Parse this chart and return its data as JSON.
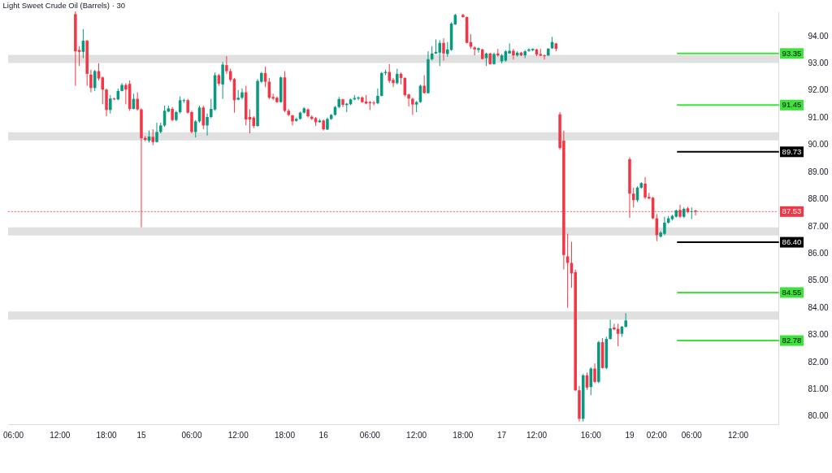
{
  "chart_data": {
    "type": "candlestick",
    "title": "Light Sweet Crude Oil (Barrels) · 30",
    "categories": [
      null,
      "06:00",
      null,
      null,
      null,
      null,
      null,
      null,
      null,
      null,
      null,
      null,
      null,
      "12:00",
      null,
      null,
      null,
      null,
      null,
      null,
      null,
      null,
      null,
      null,
      null,
      "18:00",
      null,
      null,
      null,
      null,
      null,
      null,
      null,
      null,
      "15",
      null,
      null,
      null,
      null,
      null,
      null,
      null,
      null,
      null,
      null,
      null,
      null,
      "06:00",
      null,
      null,
      null,
      null,
      null,
      null,
      null,
      null,
      null,
      null,
      null,
      "12:00",
      null,
      null,
      null,
      null,
      null,
      null,
      null,
      null,
      null,
      null,
      null,
      "18:00",
      null,
      null,
      null,
      null,
      null,
      null,
      null,
      null,
      null,
      "16",
      null,
      null,
      null,
      null,
      null,
      null,
      null,
      null,
      null,
      null,
      null,
      "06:00",
      null,
      null,
      null,
      null,
      null,
      null,
      null,
      null,
      null,
      null,
      null,
      "12:00",
      null,
      null,
      null,
      null,
      null,
      null,
      null,
      null,
      null,
      null,
      null,
      "18:00",
      null,
      null,
      null,
      null,
      null,
      null,
      null,
      null,
      null,
      "17",
      null,
      null,
      null,
      null,
      null,
      null,
      null,
      null,
      "12:00",
      null,
      null,
      null,
      null,
      null,
      null,
      null,
      null,
      null,
      null,
      null,
      null,
      null,
      "16:00",
      null,
      null,
      null,
      null,
      null,
      null,
      null,
      null,
      null,
      "19",
      null,
      null,
      null,
      null,
      null,
      null,
      "02:00",
      null,
      null,
      null,
      null,
      null,
      null,
      null,
      null,
      "06:00",
      null,
      null,
      null,
      null,
      null,
      null,
      null,
      null,
      null,
      null,
      null,
      "12:00",
      null,
      null,
      null,
      null,
      null,
      null,
      null,
      null,
      null,
      null
    ],
    "ohlc": [
      null,
      null,
      null,
      null,
      null,
      null,
      null,
      null,
      null,
      null,
      null,
      null,
      null,
      null,
      null,
      null,
      null,
      [
        94.8,
        94.9,
        92.16,
        93.43
      ],
      [
        93.48,
        93.62,
        92.89,
        93.41
      ],
      [
        93.41,
        94.25,
        93.18,
        93.82
      ],
      [
        93.82,
        93.85,
        92.16,
        92.6
      ],
      [
        92.57,
        92.75,
        91.92,
        92.08
      ],
      [
        92.08,
        92.75,
        91.97,
        92.7
      ],
      [
        92.7,
        92.99,
        92.36,
        92.43
      ],
      [
        92.47,
        92.5,
        91.48,
        92.02
      ],
      [
        92.02,
        92.06,
        91.04,
        91.27
      ],
      [
        91.27,
        91.82,
        91.14,
        91.69
      ],
      [
        91.69,
        91.72,
        91.63,
        91.66
      ],
      [
        91.66,
        92.06,
        91.63,
        91.97
      ],
      [
        91.97,
        92.26,
        91.95,
        92.19
      ],
      [
        92.19,
        92.26,
        91.48,
        92.02
      ],
      [
        92.23,
        92.36,
        91.24,
        91.31
      ],
      [
        91.31,
        91.87,
        91.29,
        91.68
      ],
      [
        91.68,
        91.92,
        91.24,
        91.29
      ],
      [
        91.29,
        91.33,
        86.95,
        90.23
      ],
      [
        90.24,
        90.31,
        90.12,
        90.17
      ],
      [
        90.14,
        90.51,
        90.07,
        90.29
      ],
      [
        90.28,
        90.56,
        89.97,
        90.09
      ],
      [
        90.09,
        90.8,
        90.07,
        90.46
      ],
      [
        90.46,
        90.8,
        90.41,
        90.7
      ],
      [
        90.7,
        91.43,
        90.65,
        91.24
      ],
      [
        91.21,
        91.43,
        91.19,
        91.33
      ],
      [
        91.31,
        91.38,
        90.85,
        90.9
      ],
      [
        90.9,
        91.24,
        90.85,
        91.19
      ],
      [
        91.19,
        91.77,
        91.14,
        91.63
      ],
      [
        91.6,
        91.68,
        91.53,
        91.63
      ],
      [
        91.63,
        91.68,
        91.14,
        91.17
      ],
      [
        91.19,
        91.24,
        90.41,
        90.46
      ],
      [
        90.46,
        90.9,
        90.26,
        90.85
      ],
      [
        90.85,
        91.43,
        90.8,
        91.36
      ],
      [
        91.36,
        91.43,
        90.56,
        90.7
      ],
      [
        90.7,
        91.14,
        90.33,
        91.01
      ],
      [
        91.01,
        91.68,
        90.97,
        91.31
      ],
      [
        91.29,
        92.65,
        91.24,
        92.55
      ],
      [
        92.55,
        92.6,
        92.16,
        92.24
      ],
      [
        92.21,
        93.04,
        91.68,
        92.94
      ],
      [
        92.92,
        93.25,
        92.6,
        92.7
      ],
      [
        92.7,
        92.79,
        92.31,
        92.38
      ],
      [
        92.41,
        92.45,
        91.17,
        91.63
      ],
      [
        91.65,
        92.0,
        91.63,
        91.72
      ],
      [
        91.72,
        92.06,
        91.66,
        91.92
      ],
      [
        91.92,
        92.16,
        90.7,
        90.92
      ],
      [
        91.01,
        91.29,
        90.41,
        90.92
      ],
      [
        90.99,
        91.04,
        90.6,
        90.68
      ],
      [
        90.68,
        92.41,
        90.65,
        92.34
      ],
      [
        92.31,
        92.67,
        92.26,
        92.63
      ],
      [
        92.63,
        92.87,
        92.11,
        92.31
      ],
      [
        92.31,
        92.45,
        91.67,
        91.72
      ],
      [
        91.75,
        91.87,
        91.63,
        91.69
      ],
      [
        91.72,
        91.77,
        91.53,
        91.56
      ],
      [
        91.56,
        92.5,
        91.53,
        92.47
      ],
      [
        92.47,
        92.7,
        91.19,
        91.24
      ],
      [
        91.24,
        91.31,
        91.04,
        91.09
      ],
      [
        91.07,
        91.09,
        90.7,
        90.85
      ],
      [
        90.87,
        90.99,
        90.84,
        90.94
      ],
      [
        90.94,
        91.21,
        90.92,
        91.17
      ],
      [
        91.17,
        91.38,
        91.14,
        91.33
      ],
      [
        91.29,
        91.33,
        90.99,
        91.04
      ],
      [
        91.02,
        91.07,
        90.9,
        90.94
      ],
      [
        90.97,
        91.01,
        90.68,
        90.82
      ],
      [
        90.82,
        90.94,
        90.8,
        90.88
      ],
      [
        90.88,
        90.92,
        90.51,
        90.56
      ],
      [
        90.55,
        90.99,
        90.53,
        90.94
      ],
      [
        90.94,
        91.12,
        90.9,
        91.09
      ],
      [
        91.09,
        91.42,
        91.06,
        91.38
      ],
      [
        91.38,
        91.75,
        91.33,
        91.67
      ],
      [
        91.66,
        91.69,
        91.38,
        91.46
      ],
      [
        91.45,
        91.53,
        91.19,
        91.5
      ],
      [
        91.48,
        91.69,
        91.45,
        91.66
      ],
      [
        91.66,
        91.82,
        91.63,
        91.71
      ],
      [
        91.69,
        91.77,
        91.63,
        91.73
      ],
      [
        91.73,
        91.77,
        91.53,
        91.56
      ],
      [
        91.58,
        91.82,
        91.48,
        91.51
      ],
      [
        91.56,
        91.6,
        91.27,
        91.52
      ],
      [
        91.54,
        91.6,
        91.44,
        91.51
      ],
      [
        91.52,
        92.06,
        91.48,
        91.79
      ],
      [
        91.79,
        92.67,
        91.77,
        92.63
      ],
      [
        92.63,
        92.75,
        92.55,
        92.67
      ],
      [
        92.67,
        92.96,
        92.26,
        92.34
      ],
      [
        92.38,
        92.45,
        92.11,
        92.26
      ],
      [
        92.26,
        92.79,
        92.21,
        92.6
      ],
      [
        92.6,
        92.65,
        92.21,
        92.45
      ],
      [
        92.45,
        92.47,
        91.77,
        91.82
      ],
      [
        91.84,
        91.87,
        91.4,
        91.69
      ],
      [
        91.68,
        91.72,
        91.09,
        91.47
      ],
      [
        91.47,
        91.6,
        91.19,
        91.56
      ],
      [
        91.56,
        92.21,
        91.53,
        92.16
      ],
      [
        92.16,
        92.55,
        91.87,
        91.89
      ],
      [
        91.89,
        93.43,
        91.87,
        93.14
      ],
      [
        93.14,
        93.62,
        93.09,
        93.35
      ],
      [
        93.35,
        93.87,
        93.33,
        93.41
      ],
      [
        93.38,
        93.84,
        92.89,
        93.74
      ],
      [
        93.74,
        93.91,
        93.09,
        93.35
      ],
      [
        93.33,
        93.77,
        93.23,
        93.5
      ],
      [
        93.48,
        94.5,
        93.45,
        94.45
      ],
      [
        94.42,
        94.81,
        94.4,
        94.77
      ],
      null,
      [
        94.77,
        94.81,
        94.67,
        94.69
      ],
      [
        94.69,
        94.71,
        93.72,
        93.74
      ],
      [
        93.77,
        94.06,
        93.52,
        93.6
      ],
      [
        93.57,
        93.62,
        93.28,
        93.5
      ],
      [
        93.48,
        93.57,
        93.38,
        93.54
      ],
      [
        93.5,
        93.52,
        93.13,
        93.15
      ],
      [
        93.18,
        93.38,
        92.89,
        93.35
      ],
      [
        93.35,
        93.38,
        92.94,
        92.96
      ],
      [
        92.96,
        93.38,
        92.94,
        93.33
      ],
      [
        93.35,
        93.52,
        93.23,
        93.28
      ],
      [
        93.06,
        93.33,
        92.99,
        93.28
      ],
      [
        93.09,
        93.48,
        93.04,
        93.43
      ],
      [
        93.35,
        93.72,
        93.33,
        93.45
      ],
      [
        93.45,
        93.52,
        93.13,
        93.28
      ],
      [
        93.28,
        93.43,
        93.23,
        93.38
      ],
      [
        93.38,
        93.41,
        93.25,
        93.28
      ],
      [
        93.28,
        93.48,
        93.18,
        93.43
      ],
      [
        93.45,
        93.54,
        93.41,
        93.5
      ],
      [
        93.47,
        93.54,
        93.43,
        93.52
      ],
      [
        93.5,
        93.52,
        93.25,
        93.31
      ],
      [
        93.33,
        93.52,
        93.25,
        93.27
      ],
      [
        93.28,
        93.31,
        93.13,
        93.25
      ],
      [
        93.28,
        93.54,
        93.25,
        93.53
      ],
      [
        93.54,
        93.96,
        93.52,
        93.77
      ],
      [
        93.72,
        93.74,
        93.43,
        93.52
      ],
      [
        91.11,
        91.19,
        89.81,
        89.87
      ],
      [
        90.14,
        90.51,
        85.4,
        85.93
      ],
      [
        85.88,
        86.71,
        83.99,
        85.64
      ],
      [
        85.64,
        86.42,
        84.72,
        85.25
      ],
      [
        85.3,
        85.4,
        80.92,
        80.95
      ],
      [
        80.95,
        81.11,
        79.8,
        79.9
      ],
      [
        79.9,
        81.55,
        79.8,
        81.5
      ],
      [
        81.5,
        81.6,
        80.97,
        81.05
      ],
      [
        81.07,
        81.8,
        80.77,
        81.75
      ],
      [
        81.75,
        81.94,
        81.21,
        81.26
      ],
      [
        81.26,
        82.77,
        81.21,
        82.72
      ],
      [
        82.72,
        82.87,
        81.75,
        81.77
      ],
      [
        81.77,
        82.92,
        81.73,
        82.84
      ],
      [
        82.84,
        83.55,
        82.82,
        83.23
      ],
      [
        83.26,
        83.4,
        83.16,
        83.19
      ],
      [
        83.21,
        83.4,
        82.57,
        83.03
      ],
      [
        83.03,
        83.32,
        82.92,
        83.29
      ],
      [
        83.29,
        83.79,
        83.26,
        83.52
      ],
      [
        89.46,
        89.53,
        87.3,
        88.19
      ],
      [
        88.19,
        88.41,
        87.68,
        87.95
      ],
      [
        87.95,
        88.46,
        87.88,
        88.41
      ],
      [
        88.41,
        88.61,
        88.37,
        88.58
      ],
      [
        88.56,
        88.8,
        87.99,
        88.05
      ],
      [
        88.07,
        88.22,
        87.98,
        88.01
      ],
      [
        88.04,
        88.07,
        87.25,
        87.28
      ],
      [
        87.28,
        87.44,
        86.44,
        86.66
      ],
      [
        86.61,
        86.81,
        86.57,
        86.76
      ],
      [
        86.71,
        87.34,
        86.66,
        87.12
      ],
      [
        87.12,
        87.37,
        87.08,
        87.28
      ],
      [
        87.25,
        87.41,
        87.2,
        87.37
      ],
      [
        87.34,
        87.61,
        87.31,
        87.57
      ],
      [
        87.59,
        87.78,
        87.29,
        87.34
      ],
      [
        87.34,
        87.68,
        87.29,
        87.63
      ],
      [
        87.65,
        87.7,
        87.47,
        87.51
      ],
      [
        87.52,
        87.68,
        87.25,
        87.54
      ],
      [
        87.57,
        87.59,
        87.39,
        87.53
      ],
      null,
      null,
      null,
      null,
      null,
      null,
      null,
      null,
      null,
      null,
      null,
      null,
      null,
      null,
      null,
      null,
      null,
      null,
      null,
      null,
      null
    ],
    "colors": [
      null,
      null,
      null,
      null,
      null,
      null,
      null,
      null,
      null,
      null,
      null,
      null,
      null,
      null,
      null,
      null,
      null,
      "#f23645",
      "#f23645",
      "#089981",
      "#f23645",
      "#f23645",
      "#089981",
      "#f23645",
      "#f23645",
      "#f23645",
      "#089981",
      "#f23645",
      "#089981",
      "#089981",
      "#f23645",
      "#f23645",
      "#089981",
      "#f23645",
      "#f23645",
      "#f23645",
      "#089981",
      "#f23645",
      "#089981",
      "#089981",
      "#089981",
      "#089981",
      "#f23645",
      "#089981",
      "#089981",
      "#089981",
      "#f23645",
      "#f23645",
      "#089981",
      "#089981",
      "#f23645",
      "#089981",
      "#089981",
      "#089981",
      "#f23645",
      "#089981",
      "#f23645",
      "#f23645",
      "#f23645",
      "#089981",
      "#089981",
      "#f23645",
      "#f23645",
      "#f23645",
      "#089981",
      "#089981",
      "#f23645",
      "#f23645",
      "#f23645",
      "#f23645",
      "#089981",
      "#f23645",
      "#f23645",
      "#f23645",
      "#089981",
      "#089981",
      "#089981",
      "#f23645",
      "#f23645",
      "#f23645",
      "#089981",
      "#f23645",
      "#089981",
      "#089981",
      "#089981",
      "#089981",
      "#f23645",
      "#089981",
      "#089981",
      "#089981",
      "#089981",
      "#f23645",
      "#f23645",
      "#f23645",
      "#f23645",
      "#089981",
      "#089981",
      "#089981",
      "#f23645",
      "#f23645",
      "#089981",
      "#f23645",
      "#f23645",
      "#f23645",
      "#f23645",
      "#089981",
      "#089981",
      "#f23645",
      "#089981",
      "#089981",
      "#089981",
      "#089981",
      "#f23645",
      "#089981",
      "#089981",
      "#089981",
      null,
      "#f23645",
      "#f23645",
      "#f23645",
      "#f23645",
      "#089981",
      "#f23645",
      "#089981",
      "#f23645",
      "#089981",
      "#f23645",
      "#089981",
      "#089981",
      "#089981",
      "#f23645",
      "#089981",
      "#f23645",
      "#089981",
      "#089981",
      "#089981",
      "#f23645",
      "#f23645",
      "#f23645",
      "#089981",
      "#089981",
      "#f23645",
      "#f23645",
      "#f23645",
      "#f23645",
      "#f23645",
      "#f23645",
      "#f23645",
      "#089981",
      "#f23645",
      "#089981",
      "#f23645",
      "#089981",
      "#f23645",
      "#089981",
      "#089981",
      "#f23645",
      "#f23645",
      "#089981",
      "#089981",
      "#f23645",
      "#f23645",
      "#089981",
      "#089981",
      "#f23645",
      "#f23645",
      "#f23645",
      "#f23645",
      "#089981",
      "#089981",
      "#089981",
      "#089981",
      "#089981",
      "#f23645",
      "#089981",
      "#f23645",
      "#089981",
      "#f23645",
      null,
      null,
      null,
      null,
      null,
      null,
      null,
      null,
      null,
      null,
      null,
      null,
      null,
      null,
      null,
      null,
      null,
      null,
      null,
      null,
      null
    ],
    "ylim": [
      79.7,
      94.9
    ],
    "yticks": [
      {
        "value": 80,
        "label": "80.00"
      },
      {
        "value": 81,
        "label": "81.00"
      },
      {
        "value": 82,
        "label": "82.00"
      },
      {
        "value": 83,
        "label": "83.00"
      },
      {
        "value": 84,
        "label": "84.00"
      },
      {
        "value": 85,
        "label": "85.00"
      },
      {
        "value": 86,
        "label": "86.00"
      },
      {
        "value": 87,
        "label": "87.00"
      },
      {
        "value": 88,
        "label": "88.00"
      },
      {
        "value": 89,
        "label": "89.00"
      },
      {
        "value": 90,
        "label": "90.00"
      },
      {
        "value": 91,
        "label": "91.00"
      },
      {
        "value": 92,
        "label": "92.00"
      },
      {
        "value": 93,
        "label": "93.00"
      },
      {
        "value": 94,
        "label": "94.00"
      }
    ],
    "bands": [
      {
        "axis": "y",
        "from": 93.0,
        "to": 93.3,
        "color": "#e0e0e0"
      },
      {
        "axis": "y",
        "from": 90.15,
        "to": 90.45,
        "color": "#e0e0e0"
      },
      {
        "axis": "y",
        "from": 86.65,
        "to": 86.95,
        "color": "#e0e0e0"
      },
      {
        "axis": "y",
        "from": 83.55,
        "to": 83.85,
        "color": "#e0e0e0"
      }
    ],
    "ref_lines": [
      {
        "axis": "y",
        "value": 93.35,
        "label": "93.35",
        "color": "#3be33b",
        "line_style": "solid"
      },
      {
        "axis": "y",
        "value": 91.45,
        "label": "91.45",
        "color": "#3be33b",
        "line_style": "solid"
      },
      {
        "axis": "y",
        "value": 89.73,
        "label": "89.73",
        "color": "#000000",
        "line_style": "solid"
      },
      {
        "axis": "y",
        "value": 87.53,
        "label": "87.53",
        "color": "#f23645",
        "line_style": "dotted"
      },
      {
        "axis": "y",
        "value": 86.4,
        "label": "86.40",
        "color": "#000000",
        "line_style": "solid"
      },
      {
        "axis": "y",
        "value": 84.55,
        "label": "84.55",
        "color": "#3be33b",
        "line_style": "solid"
      },
      {
        "axis": "y",
        "value": 82.78,
        "label": "82.78",
        "color": "#3be33b",
        "line_style": "solid"
      }
    ]
  }
}
